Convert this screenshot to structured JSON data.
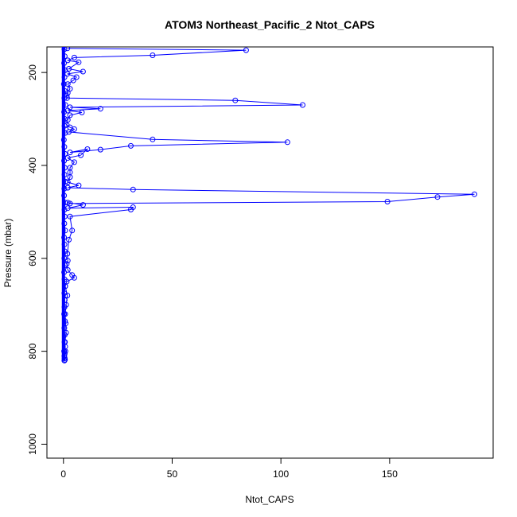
{
  "chart_data": {
    "type": "line",
    "title": "ATOM3 Northeast_Pacific_2 Ntot_CAPS",
    "xlabel": "Ntot_CAPS",
    "ylabel": "Pressure (mbar)",
    "xlim": [
      0,
      190
    ],
    "ylim": [
      1030,
      145
    ],
    "y_reversed": true,
    "x_ticks": [
      0,
      50,
      100,
      150
    ],
    "y_ticks": [
      200,
      400,
      600,
      800,
      1000
    ],
    "grid": false,
    "legend": "none",
    "series_color": "#0000ff",
    "marker": "open-circle",
    "series": [
      {
        "x": [
          1.8,
          84,
          41,
          5,
          2,
          7,
          2.5,
          9,
          1.8,
          6,
          4.5,
          2,
          3,
          2,
          1.5,
          1.7,
          79,
          110,
          3,
          17,
          2,
          8.5,
          3,
          2,
          1.5,
          3,
          5,
          2.5,
          41,
          103,
          31,
          17,
          3,
          11,
          8,
          2,
          5,
          3,
          3,
          3,
          2,
          7,
          2,
          2,
          32,
          189,
          172,
          149,
          3,
          2,
          9,
          2,
          32,
          31,
          3,
          4,
          2.5,
          1.8,
          2,
          1.5,
          2,
          4,
          5,
          1.5,
          0.8,
          1.8,
          1.2,
          0.8,
          1,
          1.2,
          0.7,
          0.9,
          0.6,
          0.5
        ],
        "y": [
          148,
          152,
          163,
          168,
          174,
          178,
          192,
          198,
          203,
          210,
          217,
          225,
          235,
          244,
          250,
          255,
          260,
          270,
          275,
          278,
          282,
          286,
          292,
          302,
          313,
          318,
          322,
          328,
          344,
          350,
          358,
          366,
          372,
          365,
          378,
          384,
          393,
          405,
          415,
          425,
          436,
          443,
          448,
          448,
          452,
          462,
          468,
          478,
          482,
          480,
          485,
          492,
          490,
          495,
          510,
          540,
          560,
          590,
          605,
          612,
          625,
          636,
          642,
          650,
          660,
          680,
          700,
          720,
          740,
          760,
          780,
          800,
          815,
          820
        ]
      },
      {
        "x": [
          0.4,
          0.6,
          0.3,
          0.8,
          0.5,
          0.2,
          0.7,
          0.4,
          0.9,
          0.3,
          0.6,
          0.5,
          0.8,
          0.2,
          0.4,
          0.7,
          0.3,
          0.6,
          0.5,
          0.9,
          0.4,
          0.3,
          0.7,
          0.5,
          0.6,
          0.4,
          0.8,
          0.3,
          0.5,
          0.6,
          0.4,
          0.7,
          0.3,
          0.5,
          0.8,
          0.4,
          0.6,
          0.5,
          0.3,
          0.7,
          0.4,
          0.6,
          0.5,
          0.8,
          0.3,
          0.6,
          0.4,
          0.5,
          0.7,
          0.4
        ],
        "y": [
          150,
          165,
          180,
          195,
          210,
          225,
          240,
          255,
          270,
          285,
          300,
          315,
          330,
          345,
          360,
          375,
          390,
          405,
          420,
          435,
          450,
          465,
          480,
          495,
          510,
          525,
          540,
          555,
          570,
          585,
          600,
          615,
          630,
          645,
          660,
          675,
          690,
          705,
          720,
          735,
          750,
          765,
          780,
          790,
          800,
          805,
          810,
          815,
          818,
          820
        ]
      }
    ]
  }
}
